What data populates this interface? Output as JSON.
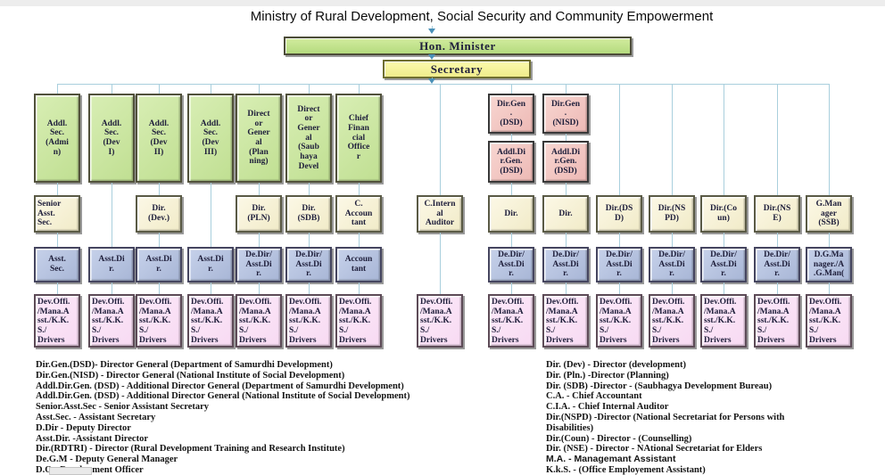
{
  "title": "Ministry of Rural Development, Social Security and Community Empowerment",
  "nodes": {
    "minister": "Hon. Minister",
    "secretary": "Secretary"
  },
  "org": {
    "row1": [
      {
        "col": 1,
        "label": "Addl.\nSec.\n(Admi\nn)"
      },
      {
        "col": 2,
        "label": "Addl.\nSec.\n(Dev\nI)"
      },
      {
        "col": 3,
        "label": "Addl.\nSec.\n(Dev\nII)"
      },
      {
        "col": 4,
        "label": "Addl.\nSec.\n(Dev\nIII)"
      },
      {
        "col": 5,
        "label": "Direct\nor\nGener\nal\n(Plan\nning)"
      },
      {
        "col": 6,
        "label": "Direct\nor\nGener\nal\n(Saub\nhaya\nDevel"
      },
      {
        "col": 7,
        "label": "Chief\nFinan\ncial\nOffice\nr"
      }
    ],
    "dirgen": [
      {
        "col": 9,
        "tier": 1,
        "label": "Dir.Gen\n.\n(DSD)"
      },
      {
        "col": 10,
        "tier": 1,
        "label": "Dir.Gen\n.\n(NISD)"
      },
      {
        "col": 9,
        "tier": 2,
        "label": "Addl.Di\nr.Gen.\n(DSD)"
      },
      {
        "col": 10,
        "tier": 2,
        "label": "Addl.Di\nr.Gen.\n(DSD)"
      }
    ],
    "row2": [
      {
        "col": 1,
        "label": "Senior\nAsst.\nSec."
      },
      {
        "col": 3,
        "label": "Dir.\n(Dev.)"
      },
      {
        "col": 5,
        "label": "Dir.\n(PLN)"
      },
      {
        "col": 6,
        "label": "Dir.\n(SDB)"
      },
      {
        "col": 7,
        "label": "C.\nAccoun\ntant"
      },
      {
        "col": 8,
        "label": "C.Intern\nal\nAuditor"
      },
      {
        "col": 9,
        "label": "Dir."
      },
      {
        "col": 10,
        "label": "Dir."
      },
      {
        "col": 11,
        "label": "Dir.(DS\nD)"
      },
      {
        "col": 12,
        "label": "Dir.(NS\nPD)"
      },
      {
        "col": 13,
        "label": "Dir.(Co\nun)"
      },
      {
        "col": 14,
        "label": "Dir.(NS\nE)"
      },
      {
        "col": 15,
        "label": "G.Man\nager\n(SSB)"
      }
    ],
    "row3": [
      {
        "col": 1,
        "label": "Asst.\nSec."
      },
      {
        "col": 2,
        "label": "Asst.Di\nr."
      },
      {
        "col": 3,
        "label": "Asst.Di\nr."
      },
      {
        "col": 4,
        "label": "Asst.Di\nr."
      },
      {
        "col": 5,
        "label": "De.Dir/\nAsst.Di\nr."
      },
      {
        "col": 6,
        "label": "De.Dir/\nAsst.Di\nr."
      },
      {
        "col": 7,
        "label": "Accoun\ntant"
      },
      {
        "col": 9,
        "label": "De.Dir/\nAsst.Di\nr."
      },
      {
        "col": 10,
        "label": "De.Dir/\nAsst.Di\nr."
      },
      {
        "col": 11,
        "label": "De.Dir/\nAsst.Di\nr."
      },
      {
        "col": 12,
        "label": "De.Dir/\nAsst.Di\nr."
      },
      {
        "col": 13,
        "label": "De.Dir/\nAsst.Di\nr."
      },
      {
        "col": 14,
        "label": "De.Dir/\nAsst.Di\nr."
      },
      {
        "col": 15,
        "label": "D.G.Ma\nnager./A\n.G.Man("
      }
    ],
    "row4": [
      {
        "col": 1,
        "label": "Dev.Offi.\n/Mana.A\nsst./K.K.\nS./\nDrivers"
      },
      {
        "col": 2,
        "label": "Dev.Offi.\n/Mana.A\nsst./K.K.\nS./\nDrivers"
      },
      {
        "col": 3,
        "label": "Dev.Offi.\n/Mana.A\nsst./K.K.\nS./\nDrivers"
      },
      {
        "col": 4,
        "label": "Dev.Offi.\n/Mana.A\nsst./K.K.\nS./\nDrivers"
      },
      {
        "col": 5,
        "label": "Dev.Offi.\n/Mana.A\nsst./K.K.\nS./\nDrivers"
      },
      {
        "col": 6,
        "label": "Dev.Offi.\n/Mana.A\nsst./K.K.\nS./\nDrivers"
      },
      {
        "col": 7,
        "label": "Dev.Offi.\n/Mana.A\nsst./K.K.\nS./\nDrivers"
      },
      {
        "col": 8,
        "label": "Dev.Offi.\n/Mana.A\nsst./K.K.\nS./\nDrivers"
      },
      {
        "col": 9,
        "label": "Dev.Offi.\n/Mana.A\nsst./K.K.\nS./\nDrivers"
      },
      {
        "col": 10,
        "label": "Dev.Offi.\n/Mana.A\nsst./K.K.\nS./\nDrivers"
      },
      {
        "col": 11,
        "label": "Dev.Offi.\n/Mana.A\nsst./K.K.\nS./\nDrivers"
      },
      {
        "col": 12,
        "label": "Dev.Offi.\n/Mana.A\nsst./K.K.\nS./\nDrivers"
      },
      {
        "col": 13,
        "label": "Dev.Offi.\n/Mana.A\nsst./K.K.\nS./\nDrivers"
      },
      {
        "col": 14,
        "label": "Dev.Offi.\n/Mana.A\nsst./K.K.\nS./\nDrivers"
      },
      {
        "col": 15,
        "label": "Dev.Offi.\n/Mana.A\nsst./K.K.\nS./\nDrivers"
      }
    ]
  },
  "legend": {
    "left": [
      "Dir.Gen.(DSD)- Director General (Department of Samurdhi Development)",
      "Dir.Gen.(NISD) -  Director General (National Institute of Social Development)",
      "Addl.Dir.Gen. (DSD) - Additional Director General (Department of Samurdhi Development)",
      "Addl.Dir.Gen. (DSD) - Additional Director General  (National Institute of Social Development)",
      "Senior.Asst.Sec - Senior Assistant Secretary",
      "Asst.Sec. - Assistant Secretary",
      "D.Dir - Deputy Director",
      "Asst.Dir. -Assistant Director",
      "Dir.(RDTRI) - Director (Rural Development Training and Research Institute)",
      "De.G.M - Deputy General Manager",
      "D.O - Development Officer"
    ],
    "right": [
      "Dir. (Dev) - Director (development)",
      "Dir. (Pln.) -Director (Planning)",
      "Dir. (SDB) -Director - (Saubhagya Development Bureau)",
      "C.A. - Chief Accountant",
      "C.I.A. - Chief Internal Auditor",
      "Dir.(NSPD) -Director (National Secretariat for Persons with",
      "Disabilities)",
      "Dir.(Coun) - Director - (Counselling)",
      "Dir. (NSE) - Director - NAtional Secretariat for Elders",
      "M.A. - Managemant Assistant",
      "K.k.S. - (Office Employement Assistant)"
    ]
  },
  "colors": {
    "box_green": "#c0df92",
    "box_yellow": "#f5f3a0",
    "box_cream": "#f1ebc8",
    "box_blue": "#a8b6d6",
    "box_pink": "#f7daf2",
    "box_salmon": "#edb9b5",
    "connector_line": "#a9cfdd",
    "arrow": "#4a90b8",
    "box_text": "#20203c"
  }
}
